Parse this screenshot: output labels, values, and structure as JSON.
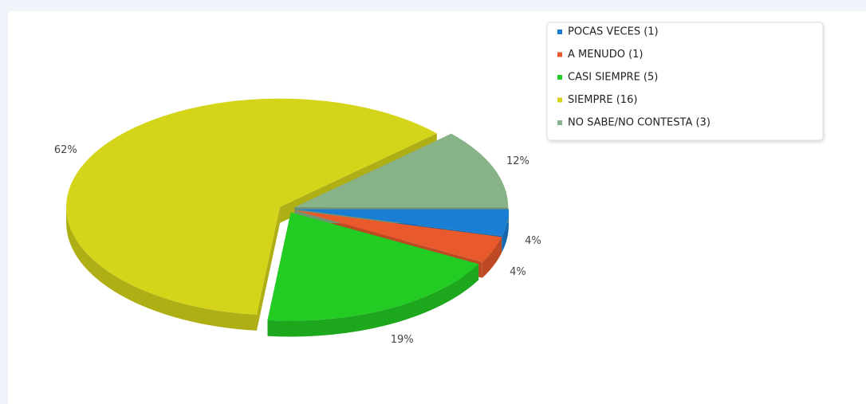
{
  "chart_data": {
    "type": "pie",
    "categories": [
      "POCAS VECES (1)",
      "A MENUDO (1)",
      "CASI SIEMPRE (5)",
      "SIEMPRE (16)",
      "NO SABE/NO CONTESTA (3)"
    ],
    "values": [
      4,
      4,
      19,
      62,
      12
    ],
    "value_labels": [
      "4%",
      "4%",
      "19%",
      "62%",
      "12%"
    ],
    "colors": [
      "#1a7fd4",
      "#e85a2c",
      "#22cc22",
      "#d4d41a",
      "#88b388"
    ],
    "legend": "top-right"
  }
}
